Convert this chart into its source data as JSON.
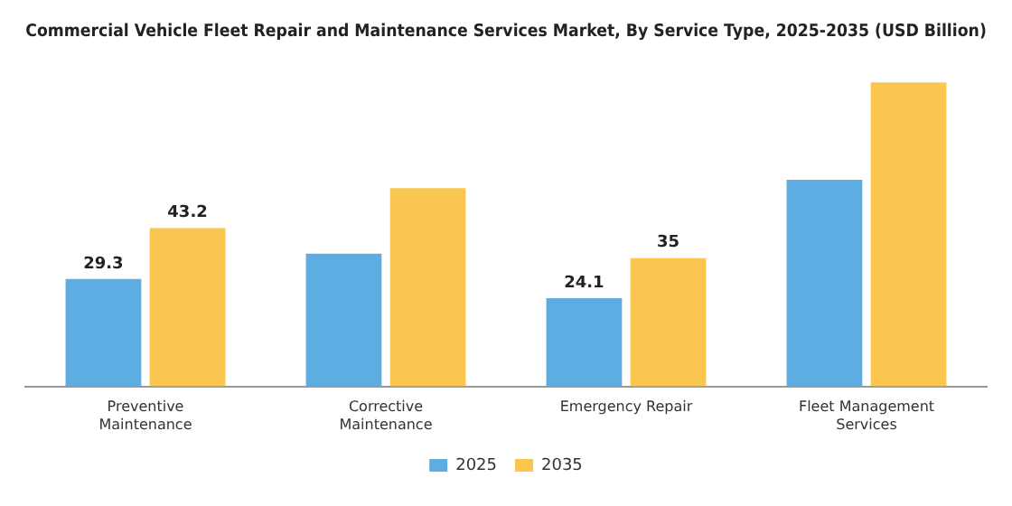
{
  "chart_data": {
    "type": "bar",
    "title": "Commercial Vehicle Fleet Repair and Maintenance Services Market, By Service Type, 2025-2035 (USD Billion)",
    "categories": [
      "Preventive Maintenance",
      "Corrective Maintenance",
      "Emergency Repair",
      "Fleet Management Services"
    ],
    "series": [
      {
        "name": "2025",
        "color": "#5dade2",
        "values": [
          29.3,
          36.2,
          24.1,
          56.4
        ],
        "value_labels": [
          "29.3",
          null,
          "24.1",
          null
        ]
      },
      {
        "name": "2035",
        "color": "#f9c74f",
        "values": [
          43.2,
          54.1,
          35,
          83.0
        ],
        "value_labels": [
          "43.2",
          null,
          "35",
          null
        ]
      }
    ],
    "legend": "bottom",
    "grid": false,
    "tick_labels": "x"
  }
}
